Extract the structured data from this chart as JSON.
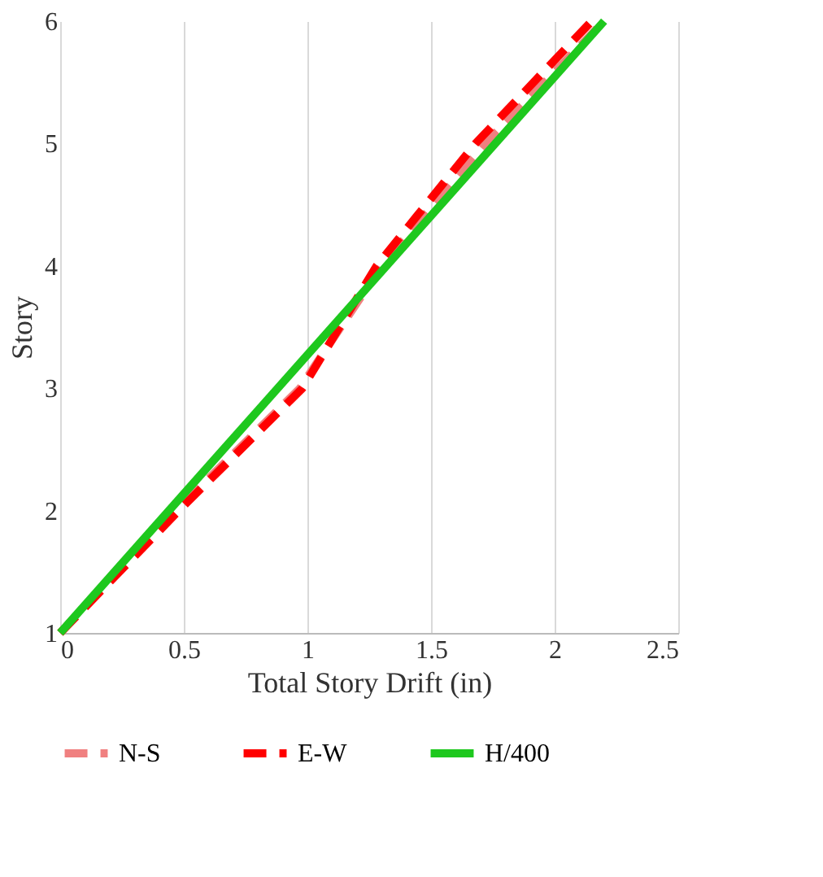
{
  "chart_data": {
    "type": "line",
    "xlabel": "Total Story Drift (in)",
    "ylabel": "Story",
    "xlim": [
      0,
      2.5
    ],
    "xticks": [
      0,
      0.5,
      1,
      1.5,
      2,
      2.5
    ],
    "ylim": [
      1,
      6
    ],
    "yticks": [
      1,
      2,
      3,
      4,
      5,
      6
    ],
    "grid": "x",
    "legend": "bottom",
    "marker": "none",
    "series": [
      {
        "name": "N-S",
        "color": "#f08080",
        "line_style": "dashed",
        "x": [
          0,
          0.47,
          0.97,
          1.3,
          1.72,
          2.2
        ],
        "values": [
          1,
          2,
          3,
          4,
          5,
          6
        ]
      },
      {
        "name": "E-W",
        "color": "#ff0000",
        "line_style": "dashed",
        "x": [
          0,
          0.48,
          0.98,
          1.28,
          1.68,
          2.15
        ],
        "values": [
          1,
          2,
          3,
          4,
          5,
          6
        ]
      },
      {
        "name": "H/400",
        "color": "#1ec81e",
        "line_style": "solid",
        "x": [
          0,
          2.2
        ],
        "values": [
          1,
          6
        ]
      }
    ]
  }
}
